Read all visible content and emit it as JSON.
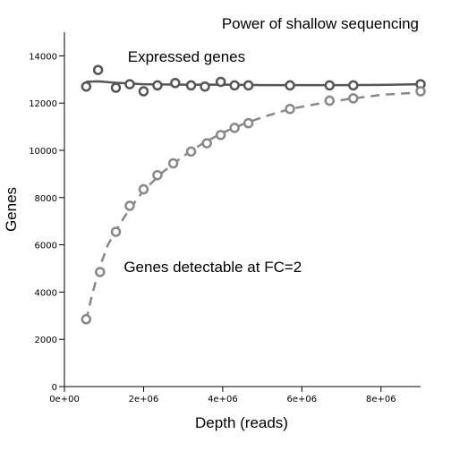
{
  "chart_data": {
    "type": "scatter",
    "title": "Power of shallow sequencing",
    "xlabel": "Depth (reads)",
    "ylabel": "Genes",
    "xlim": [
      0,
      9000000
    ],
    "ylim": [
      0,
      15000
    ],
    "x_ticks": [
      0,
      2000000,
      4000000,
      6000000,
      8000000
    ],
    "x_tick_labels": [
      "0e+00",
      "2e+06",
      "4e+06",
      "6e+06",
      "8e+06"
    ],
    "y_ticks": [
      0,
      2000,
      4000,
      6000,
      8000,
      10000,
      12000,
      14000
    ],
    "y_tick_labels": [
      "0",
      "2000",
      "4000",
      "6000",
      "8000",
      "10000",
      "12000",
      "14000"
    ],
    "grid": false,
    "legend": "none",
    "annotations": [
      {
        "text": "Expressed genes",
        "x": 1600000,
        "y": 13750
      },
      {
        "text": "Genes detectable at FC=2",
        "x": 1500000,
        "y": 4850
      }
    ],
    "series": [
      {
        "color": "#555555",
        "line_style": "solid",
        "points": [
          [
            550000,
            12700
          ],
          [
            850000,
            13400
          ],
          [
            1300000,
            12650
          ],
          [
            1650000,
            12800
          ],
          [
            2000000,
            12500
          ],
          [
            2350000,
            12750
          ],
          [
            2800000,
            12850
          ],
          [
            3200000,
            12750
          ],
          [
            3550000,
            12700
          ],
          [
            3950000,
            12900
          ],
          [
            4300000,
            12750
          ],
          [
            4650000,
            12750
          ],
          [
            5700000,
            12750
          ],
          [
            6700000,
            12750
          ],
          [
            7300000,
            12750
          ],
          [
            9000000,
            12800
          ]
        ],
        "fit": [
          [
            550000,
            12900
          ],
          [
            850000,
            12920
          ],
          [
            1300000,
            12860
          ],
          [
            2000000,
            12800
          ],
          [
            3000000,
            12780
          ],
          [
            4000000,
            12780
          ],
          [
            5000000,
            12760
          ],
          [
            6000000,
            12760
          ],
          [
            7000000,
            12760
          ],
          [
            8000000,
            12770
          ],
          [
            9000000,
            12800
          ]
        ]
      },
      {
        "color": "#888888",
        "line_style": "dashed",
        "points": [
          [
            550000,
            2850
          ],
          [
            900000,
            4850
          ],
          [
            1300000,
            6550
          ],
          [
            1650000,
            7650
          ],
          [
            2000000,
            8350
          ],
          [
            2350000,
            8950
          ],
          [
            2750000,
            9450
          ],
          [
            3200000,
            9950
          ],
          [
            3600000,
            10300
          ],
          [
            3950000,
            10650
          ],
          [
            4300000,
            10950
          ],
          [
            4650000,
            11150
          ],
          [
            5700000,
            11750
          ],
          [
            6700000,
            12100
          ],
          [
            7300000,
            12200
          ],
          [
            9000000,
            12500
          ]
        ],
        "fit": [
          [
            550000,
            2800
          ],
          [
            700000,
            3900
          ],
          [
            900000,
            5100
          ],
          [
            1100000,
            6000
          ],
          [
            1300000,
            6600
          ],
          [
            1600000,
            7400
          ],
          [
            2000000,
            8300
          ],
          [
            2500000,
            9100
          ],
          [
            3000000,
            9750
          ],
          [
            3500000,
            10300
          ],
          [
            4000000,
            10750
          ],
          [
            4500000,
            11100
          ],
          [
            5000000,
            11400
          ],
          [
            5700000,
            11750
          ],
          [
            6500000,
            12000
          ],
          [
            7300000,
            12200
          ],
          [
            8000000,
            12350
          ],
          [
            9000000,
            12450
          ]
        ]
      }
    ]
  }
}
